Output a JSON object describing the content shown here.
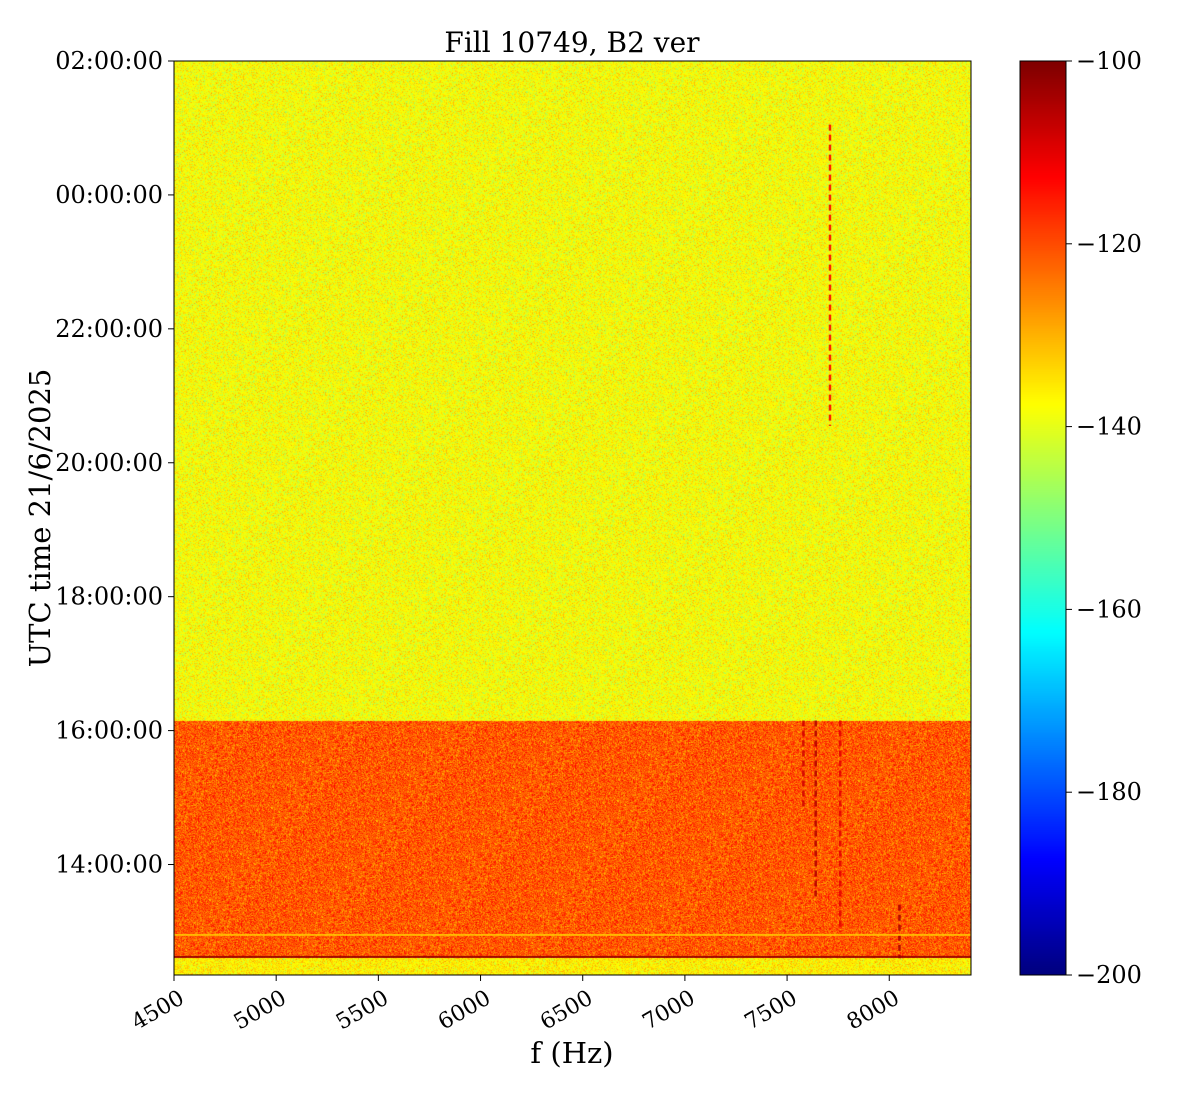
{
  "chart_data": {
    "type": "heatmap",
    "title": "Fill 10749, B2 ver",
    "xlabel": "f (Hz)",
    "ylabel": "UTC time 21/6/2025",
    "xlim": [
      4500,
      8400
    ],
    "x_ticks": [
      {
        "value": 4500,
        "label": "4500"
      },
      {
        "value": 5000,
        "label": "5000"
      },
      {
        "value": 5500,
        "label": "5500"
      },
      {
        "value": 6000,
        "label": "6000"
      },
      {
        "value": 6500,
        "label": "6500"
      },
      {
        "value": 7000,
        "label": "7000"
      },
      {
        "value": 7500,
        "label": "7500"
      },
      {
        "value": 8000,
        "label": "8000"
      }
    ],
    "y_axis_hours_range": [
      12.35,
      26.0
    ],
    "y_ticks": [
      {
        "hours": 14,
        "label": "14:00:00"
      },
      {
        "hours": 16,
        "label": "16:00:00"
      },
      {
        "hours": 18,
        "label": "18:00:00"
      },
      {
        "hours": 20,
        "label": "20:00:00"
      },
      {
        "hours": 22,
        "label": "22:00:00"
      },
      {
        "hours": 24,
        "label": "00:00:00"
      },
      {
        "hours": 26,
        "label": "02:00:00"
      }
    ],
    "colorbar": {
      "colormap": "jet",
      "range": [
        -200,
        -100
      ],
      "ticks": [
        {
          "value": -100,
          "label": "−100"
        },
        {
          "value": -120,
          "label": "−120"
        },
        {
          "value": -140,
          "label": "−140"
        },
        {
          "value": -160,
          "label": "−160"
        },
        {
          "value": -180,
          "label": "−180"
        },
        {
          "value": -200,
          "label": "−200"
        }
      ]
    },
    "regions": [
      {
        "hours_start": 16.15,
        "hours_end": 26.0,
        "mean_level": -138,
        "spread": 5
      },
      {
        "hours_start": 12.6,
        "hours_end": 16.15,
        "mean_level": -121,
        "spread": 6
      },
      {
        "hours_start": 12.35,
        "hours_end": 12.6,
        "mean_level": -136,
        "spread": 5
      }
    ],
    "features": [
      {
        "kind": "vertical_line",
        "freq": 7710,
        "hours_start": 20.55,
        "hours_end": 25.05,
        "level": -112
      },
      {
        "kind": "vertical_line",
        "freq": 7640,
        "hours_start": 13.5,
        "hours_end": 16.15,
        "level": -105
      },
      {
        "kind": "vertical_line",
        "freq": 7580,
        "hours_start": 14.8,
        "hours_end": 16.15,
        "level": -108
      },
      {
        "kind": "vertical_line",
        "freq": 7760,
        "hours_start": 13.0,
        "hours_end": 16.15,
        "level": -110
      },
      {
        "kind": "vertical_line",
        "freq": 8050,
        "hours_start": 12.6,
        "hours_end": 13.4,
        "level": -104
      },
      {
        "kind": "horizontal_line",
        "hours": 12.62,
        "level": -102
      },
      {
        "kind": "horizontal_line",
        "hours": 12.95,
        "level": -132
      }
    ]
  },
  "colors": {
    "background": "#ffffff",
    "axis": "#000000"
  }
}
